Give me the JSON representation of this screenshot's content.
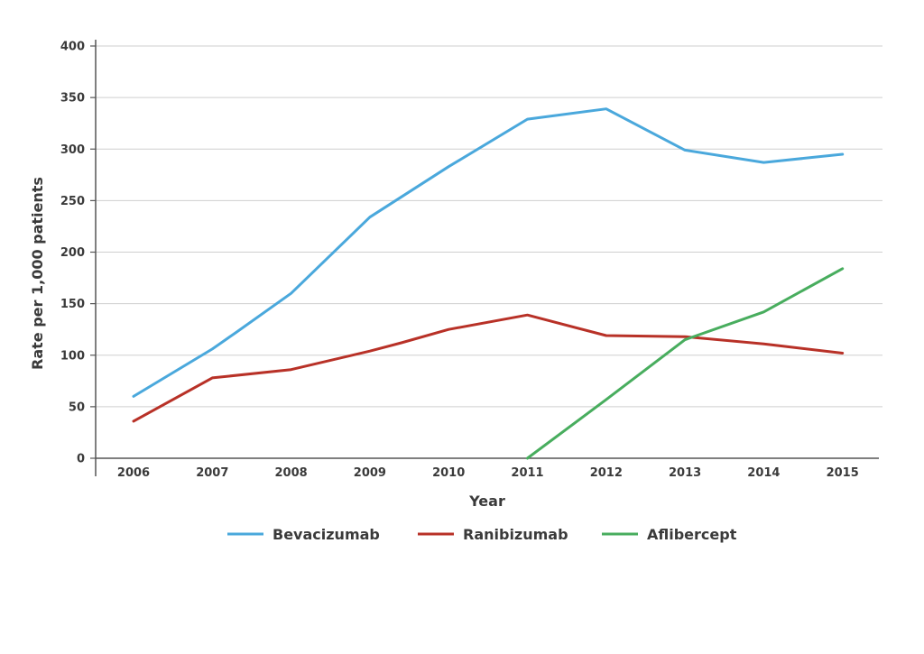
{
  "chart_data": {
    "type": "line",
    "title": "",
    "xlabel": "Year",
    "ylabel": "Rate per 1,000 patients",
    "ylim": [
      0,
      400
    ],
    "yticks": [
      0,
      50,
      100,
      150,
      200,
      250,
      300,
      350,
      400
    ],
    "categories": [
      "2006",
      "2007",
      "2008",
      "2009",
      "2010",
      "2011",
      "2012",
      "2013",
      "2014",
      "2015"
    ],
    "grid": true,
    "legend_position": "bottom",
    "series": [
      {
        "name": "Bevacizumab",
        "color": "#4aa8dc",
        "points": [
          [
            2006,
            60
          ],
          [
            2007,
            106
          ],
          [
            2007.3,
            122
          ],
          [
            2008,
            160
          ],
          [
            2009,
            234
          ],
          [
            2010,
            283
          ],
          [
            2011,
            329
          ],
          [
            2012,
            339
          ],
          [
            2013,
            299
          ],
          [
            2014,
            287
          ],
          [
            2015,
            295
          ]
        ]
      },
      {
        "name": "Ranibizumab",
        "color": "#b83127",
        "points": [
          [
            2006,
            36
          ],
          [
            2007,
            78
          ],
          [
            2008,
            86
          ],
          [
            2009,
            104
          ],
          [
            2009.4,
            112
          ],
          [
            2010,
            125
          ],
          [
            2011,
            139
          ],
          [
            2012,
            119
          ],
          [
            2013,
            118
          ],
          [
            2014,
            111
          ],
          [
            2015,
            102
          ]
        ]
      },
      {
        "name": "Aflibercept",
        "color": "#48ad5e",
        "points": [
          [
            2011,
            0
          ],
          [
            2012,
            57
          ],
          [
            2013,
            115
          ],
          [
            2014,
            142
          ],
          [
            2015,
            184
          ]
        ]
      }
    ]
  }
}
